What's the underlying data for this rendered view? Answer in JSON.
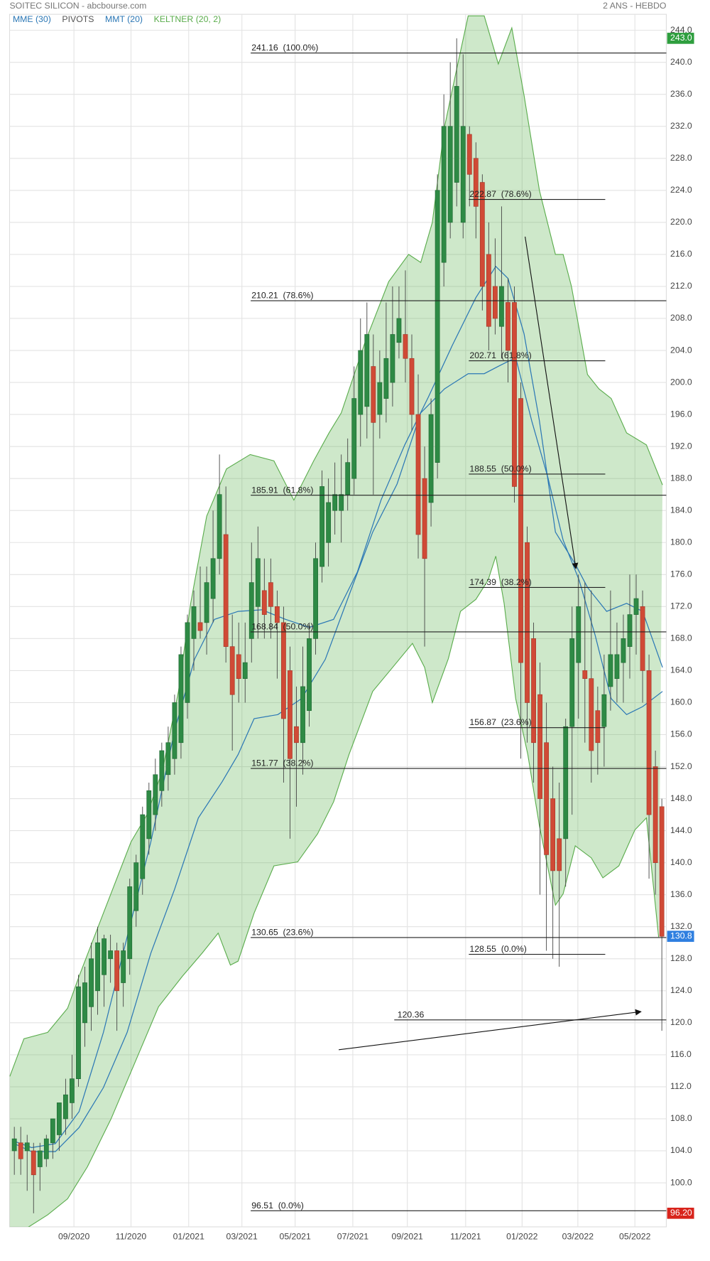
{
  "chart_data": {
    "type": "candlestick",
    "title": "SOITEC SILICON - abcbourse.com",
    "period": "2 ANS - HEBDO",
    "open": [
      104,
      105,
      104,
      104,
      102,
      103,
      105,
      106,
      108,
      110,
      113,
      120,
      122,
      124,
      126,
      128,
      129,
      125,
      128,
      134,
      138,
      143,
      146,
      149,
      151,
      153,
      155,
      160,
      168,
      170,
      170,
      173,
      178,
      181,
      167,
      166,
      163,
      168,
      172,
      174,
      175,
      172,
      170,
      164,
      157,
      155,
      159,
      168,
      177,
      180,
      184,
      184,
      186,
      188,
      196,
      197,
      202,
      196,
      198,
      200,
      205,
      206,
      203,
      196,
      188,
      185,
      190,
      215,
      220,
      225,
      220,
      231,
      228,
      225,
      216,
      212,
      207,
      210,
      210,
      198,
      180,
      168,
      161,
      155,
      148,
      143,
      143,
      157,
      165,
      164,
      163,
      159,
      157,
      162,
      163,
      165,
      167,
      171,
      172,
      164,
      152,
      147
    ],
    "high": [
      107,
      107,
      106,
      105,
      105,
      106,
      108,
      110,
      113,
      116,
      126,
      127,
      130,
      132,
      131,
      131,
      130,
      130,
      138,
      141,
      147,
      150,
      153,
      155,
      157,
      161,
      167,
      171,
      174,
      177,
      177,
      184,
      191,
      187,
      171,
      170,
      170,
      180,
      182,
      178,
      178,
      174,
      172,
      167,
      162,
      167,
      170,
      180,
      189,
      188,
      190,
      191,
      193,
      202,
      208,
      210,
      206,
      204,
      210,
      212,
      212,
      214,
      206,
      201,
      192,
      198,
      226,
      236,
      240,
      243,
      241,
      232,
      230,
      226,
      220,
      218,
      222,
      213,
      212,
      200,
      182,
      170,
      165,
      160,
      152,
      150,
      158,
      172,
      176,
      175,
      174,
      162,
      166,
      174,
      170,
      171,
      176,
      176,
      174,
      166,
      154,
      148
    ],
    "low": [
      101,
      101,
      99,
      96.2,
      99,
      102,
      103,
      104,
      106,
      108,
      112,
      117,
      119,
      121,
      122,
      125,
      119,
      122,
      126,
      132,
      136,
      141,
      144,
      147,
      149,
      151,
      153,
      158,
      164,
      168,
      166,
      170,
      176,
      165,
      154,
      160,
      160,
      165,
      168,
      168,
      168,
      163,
      150,
      143,
      147,
      151,
      157,
      166,
      175,
      177,
      181,
      180,
      184,
      186,
      192,
      193,
      186,
      193,
      195,
      197,
      203,
      200,
      194,
      178,
      167,
      182,
      188,
      212,
      218,
      222,
      218,
      222,
      218,
      209,
      204,
      206,
      203,
      200,
      185,
      153,
      155,
      150,
      136,
      129,
      128,
      127,
      137,
      146,
      158,
      155,
      150,
      151,
      152,
      159,
      160,
      160,
      163,
      166,
      160,
      138,
      136,
      119
    ],
    "close": [
      105.5,
      103,
      105,
      101,
      104,
      105.5,
      108,
      110,
      111,
      113,
      124.5,
      125,
      128,
      130,
      130.5,
      129,
      124,
      129,
      137,
      140,
      146,
      149,
      151,
      154,
      155,
      160,
      166,
      170,
      172,
      169,
      175,
      178,
      186,
      167,
      161,
      163,
      165,
      175,
      178,
      171,
      172,
      170,
      158,
      153,
      155,
      162,
      168,
      178,
      187,
      185,
      186,
      186,
      190,
      198,
      204,
      206,
      195,
      200,
      203,
      206,
      208,
      203,
      196,
      181,
      178,
      196,
      224,
      232,
      232,
      237,
      232,
      226,
      222,
      212,
      207,
      208,
      212,
      204,
      187,
      165,
      160,
      155,
      148,
      141,
      139,
      139,
      157,
      168,
      172,
      163,
      154,
      155,
      161,
      166,
      166,
      168,
      171,
      173,
      164,
      146,
      140,
      130.8
    ],
    "up_color": "#2e8a45",
    "down_color": "#d04a36",
    "series": [
      {
        "name": "MME (30)",
        "color": "#2b77b5",
        "x": [
          0,
          2.7,
          6.4,
          10.1,
          13.9,
          17.6,
          21.3,
          25,
          28.7,
          32.4,
          34.9,
          37.4,
          41.1,
          44.8,
          48.5,
          52.2,
          55.9,
          59.7,
          63.4,
          67.1,
          70.8,
          73.3,
          75.7,
          78.2,
          80.7,
          83.2,
          85.6,
          88.1,
          90.6,
          93.1,
          95.5,
          98,
          101.1
        ],
        "values": [
          104.9,
          103.9,
          103.9,
          106.9,
          111.9,
          118.8,
          128.7,
          136.7,
          145.6,
          150.1,
          153.5,
          158,
          158.5,
          160.5,
          165.4,
          173.4,
          181.3,
          187.3,
          196.2,
          199.2,
          201.1,
          201.1,
          202.1,
          203.1,
          195.2,
          188.2,
          180.3,
          175.3,
          168.4,
          160.5,
          158.5,
          159.5,
          161.4
        ]
      },
      {
        "name": "PIVOTS",
        "color": "#555555"
      },
      {
        "name": "MMT (20)",
        "color": "#2b77b5",
        "x": [
          0,
          2.7,
          6.4,
          10.1,
          13.9,
          17.6,
          21.3,
          25,
          28.1,
          31.2,
          34.9,
          38.6,
          42.3,
          46,
          49.8,
          53.5,
          57.2,
          60.9,
          64.6,
          68.3,
          72,
          75.1,
          77,
          79.5,
          81.9,
          84.4,
          87.5,
          89.4,
          92.4,
          95.5,
          98,
          101.1
        ],
        "values": [
          105.2,
          104.4,
          104.9,
          108.9,
          118.8,
          130.7,
          142.6,
          156.5,
          165.4,
          170.4,
          171.4,
          171.6,
          170.4,
          169.4,
          170.4,
          176.3,
          185.3,
          192.2,
          198.2,
          204.6,
          210.6,
          214.5,
          213,
          206.1,
          195.2,
          181.3,
          177.3,
          174.4,
          171.4,
          172.4,
          171.4,
          164.4
        ]
      },
      {
        "name": "KELTNER (20, 2)",
        "color": "#5aac4c",
        "fill": "rgba(92,178,80,0.30)",
        "upper": {
          "x": [
            -0.7,
            1.5,
            5.2,
            8.3,
            10.1,
            13.9,
            18.2,
            20.7,
            23.1,
            25.6,
            27.5,
            30,
            33.1,
            36.8,
            40.5,
            43.6,
            46.7,
            49.1,
            51,
            54.7,
            58.4,
            61.5,
            63.4,
            65.2,
            67.1,
            68.9,
            70.8,
            73.3,
            75.5,
            77.6,
            79.5,
            81.9,
            84.4,
            85.6,
            86.9,
            89.4,
            91.2,
            93.1,
            95.5,
            98.6,
            101.1
          ],
          "values": [
            113.3,
            118,
            118.8,
            121.8,
            125.8,
            133.7,
            142.6,
            146,
            151.5,
            161.4,
            172.4,
            183.3,
            189.2,
            191,
            190.2,
            185.3,
            190.2,
            193.7,
            196.2,
            205,
            212.6,
            216,
            215,
            220,
            231.9,
            238.8,
            245.8,
            245.8,
            239.8,
            244.3,
            235.9,
            224,
            216,
            216,
            212,
            201,
            199.2,
            198,
            193.7,
            192.2,
            187.2
          ]
        },
        "lower": {
          "x": [
            -0.7,
            5.2,
            8.3,
            11.4,
            15.1,
            18.8,
            22.5,
            26.2,
            29.3,
            31.8,
            33.7,
            34.9,
            37.4,
            40.5,
            44.2,
            47.3,
            49.8,
            52.2,
            55.9,
            59,
            62.1,
            64,
            65.2,
            67.7,
            69.6,
            72,
            73.9,
            75.1,
            76.4,
            78.2,
            80.1,
            81.9,
            84.4,
            85.6,
            87.5,
            90,
            91.8,
            94.3,
            96.8,
            98.6,
            100.5
          ],
          "values": [
            93,
            96,
            98,
            102,
            108,
            115,
            122,
            125.8,
            128.7,
            131.2,
            127.2,
            127.7,
            133.7,
            139.6,
            140.1,
            143.6,
            147.6,
            153.5,
            161.4,
            164.4,
            167.4,
            164.4,
            160,
            165.5,
            171.4,
            172.9,
            175.3,
            178.3,
            172.4,
            160.5,
            153.5,
            144.6,
            134.7,
            136.1,
            142.1,
            140.6,
            138.1,
            139.6,
            144.1,
            145.6,
            130.7
          ]
        }
      }
    ],
    "fib_long": [
      {
        "value": 241.16,
        "label": "241.16  (100.0%)"
      },
      {
        "value": 210.21,
        "label": "210.21  (78.6%)"
      },
      {
        "value": 185.91,
        "label": "185.91  (61.8%)"
      },
      {
        "value": 168.84,
        "label": "168.84  (50.0%)"
      },
      {
        "value": 151.77,
        "label": "151.77  (38.2%)"
      },
      {
        "value": 130.65,
        "label": "130.65  (23.6%)"
      },
      {
        "value": 96.51,
        "label": "96.51  (0.0%)"
      }
    ],
    "fib_short": [
      {
        "value": 222.87,
        "label": "222.87  (78.6%)"
      },
      {
        "value": 202.71,
        "label": "202.71  (61.8%)"
      },
      {
        "value": 188.55,
        "label": "188.55  (50.0%)"
      },
      {
        "value": 174.39,
        "label": "174.39  (38.2%)"
      },
      {
        "value": 156.87,
        "label": "156.87  (23.6%)"
      },
      {
        "value": 128.55,
        "label": "128.55  (0.0%)"
      }
    ],
    "level": {
      "value": 120.36,
      "label": "120.36"
    },
    "price_tags": [
      {
        "value": 243.0,
        "label": "243.0",
        "color": "#2e9e3e"
      },
      {
        "value": 130.8,
        "label": "130.8",
        "color": "#2f7fe0"
      },
      {
        "value": 96.2,
        "label": "96.20",
        "color": "#d8241c"
      }
    ],
    "xlim": [
      -0.74,
      101.7
    ],
    "xticks": [
      {
        "value": 9.3,
        "label": "09/2020"
      },
      {
        "value": 18.2,
        "label": "11/2020"
      },
      {
        "value": 27.2,
        "label": "01/2021"
      },
      {
        "value": 35.5,
        "label": "03/2021"
      },
      {
        "value": 43.8,
        "label": "05/2021"
      },
      {
        "value": 52.8,
        "label": "07/2021"
      },
      {
        "value": 61.3,
        "label": "09/2021"
      },
      {
        "value": 70.4,
        "label": "11/2021"
      },
      {
        "value": 79.2,
        "label": "01/2022"
      },
      {
        "value": 87.9,
        "label": "03/2022"
      },
      {
        "value": 96.8,
        "label": "05/2022"
      }
    ],
    "ylim": [
      94.5,
      246
    ],
    "yticks": [
      {
        "value": 100,
        "label": "100.0"
      },
      {
        "value": 104,
        "label": "104.0"
      },
      {
        "value": 108,
        "label": "108.0"
      },
      {
        "value": 112,
        "label": "112.0"
      },
      {
        "value": 116,
        "label": "116.0"
      },
      {
        "value": 120,
        "label": "120.0"
      },
      {
        "value": 124,
        "label": "124.0"
      },
      {
        "value": 128,
        "label": "128.0"
      },
      {
        "value": 132,
        "label": "132.0"
      },
      {
        "value": 136,
        "label": "136.0"
      },
      {
        "value": 140,
        "label": "140.0"
      },
      {
        "value": 144,
        "label": "144.0"
      },
      {
        "value": 148,
        "label": "148.0"
      },
      {
        "value": 152,
        "label": "152.0"
      },
      {
        "value": 156,
        "label": "156.0"
      },
      {
        "value": 160,
        "label": "160.0"
      },
      {
        "value": 164,
        "label": "164.0"
      },
      {
        "value": 168,
        "label": "168.0"
      },
      {
        "value": 172,
        "label": "172.0"
      },
      {
        "value": 176,
        "label": "176.0"
      },
      {
        "value": 180,
        "label": "180.0"
      },
      {
        "value": 184,
        "label": "184.0"
      },
      {
        "value": 188,
        "label": "188.0"
      },
      {
        "value": 192,
        "label": "192.0"
      },
      {
        "value": 196,
        "label": "196.0"
      },
      {
        "value": 200,
        "label": "200.0"
      },
      {
        "value": 204,
        "label": "204.0"
      },
      {
        "value": 208,
        "label": "208.0"
      },
      {
        "value": 212,
        "label": "212.0"
      },
      {
        "value": 216,
        "label": "216.0"
      },
      {
        "value": 220,
        "label": "220.0"
      },
      {
        "value": 224,
        "label": "224.0"
      },
      {
        "value": 228,
        "label": "228.0"
      },
      {
        "value": 232,
        "label": "232.0"
      },
      {
        "value": 236,
        "label": "236.0"
      },
      {
        "value": 240,
        "label": "240.0"
      },
      {
        "value": 244,
        "label": "244.0"
      }
    ],
    "grid": true
  }
}
